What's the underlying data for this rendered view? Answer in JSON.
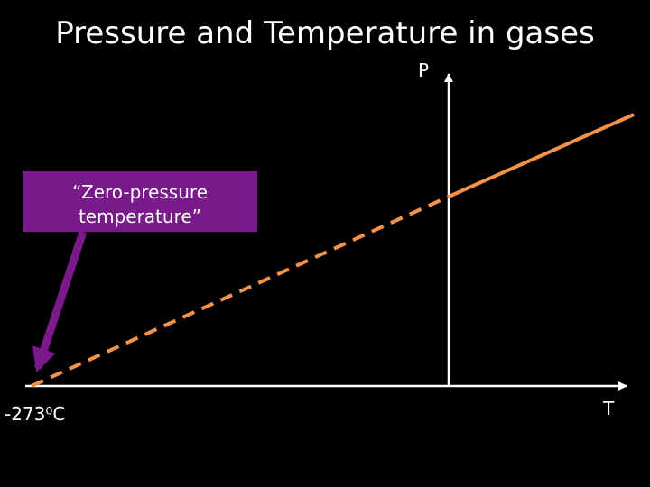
{
  "title": "Pressure and Temperature in gases",
  "axes": {
    "y_label": "P",
    "x_label": "T",
    "x_origin_label": "-273⁰C"
  },
  "callout": {
    "lines": [
      "“Zero-pressure",
      "temperature”"
    ]
  }
}
